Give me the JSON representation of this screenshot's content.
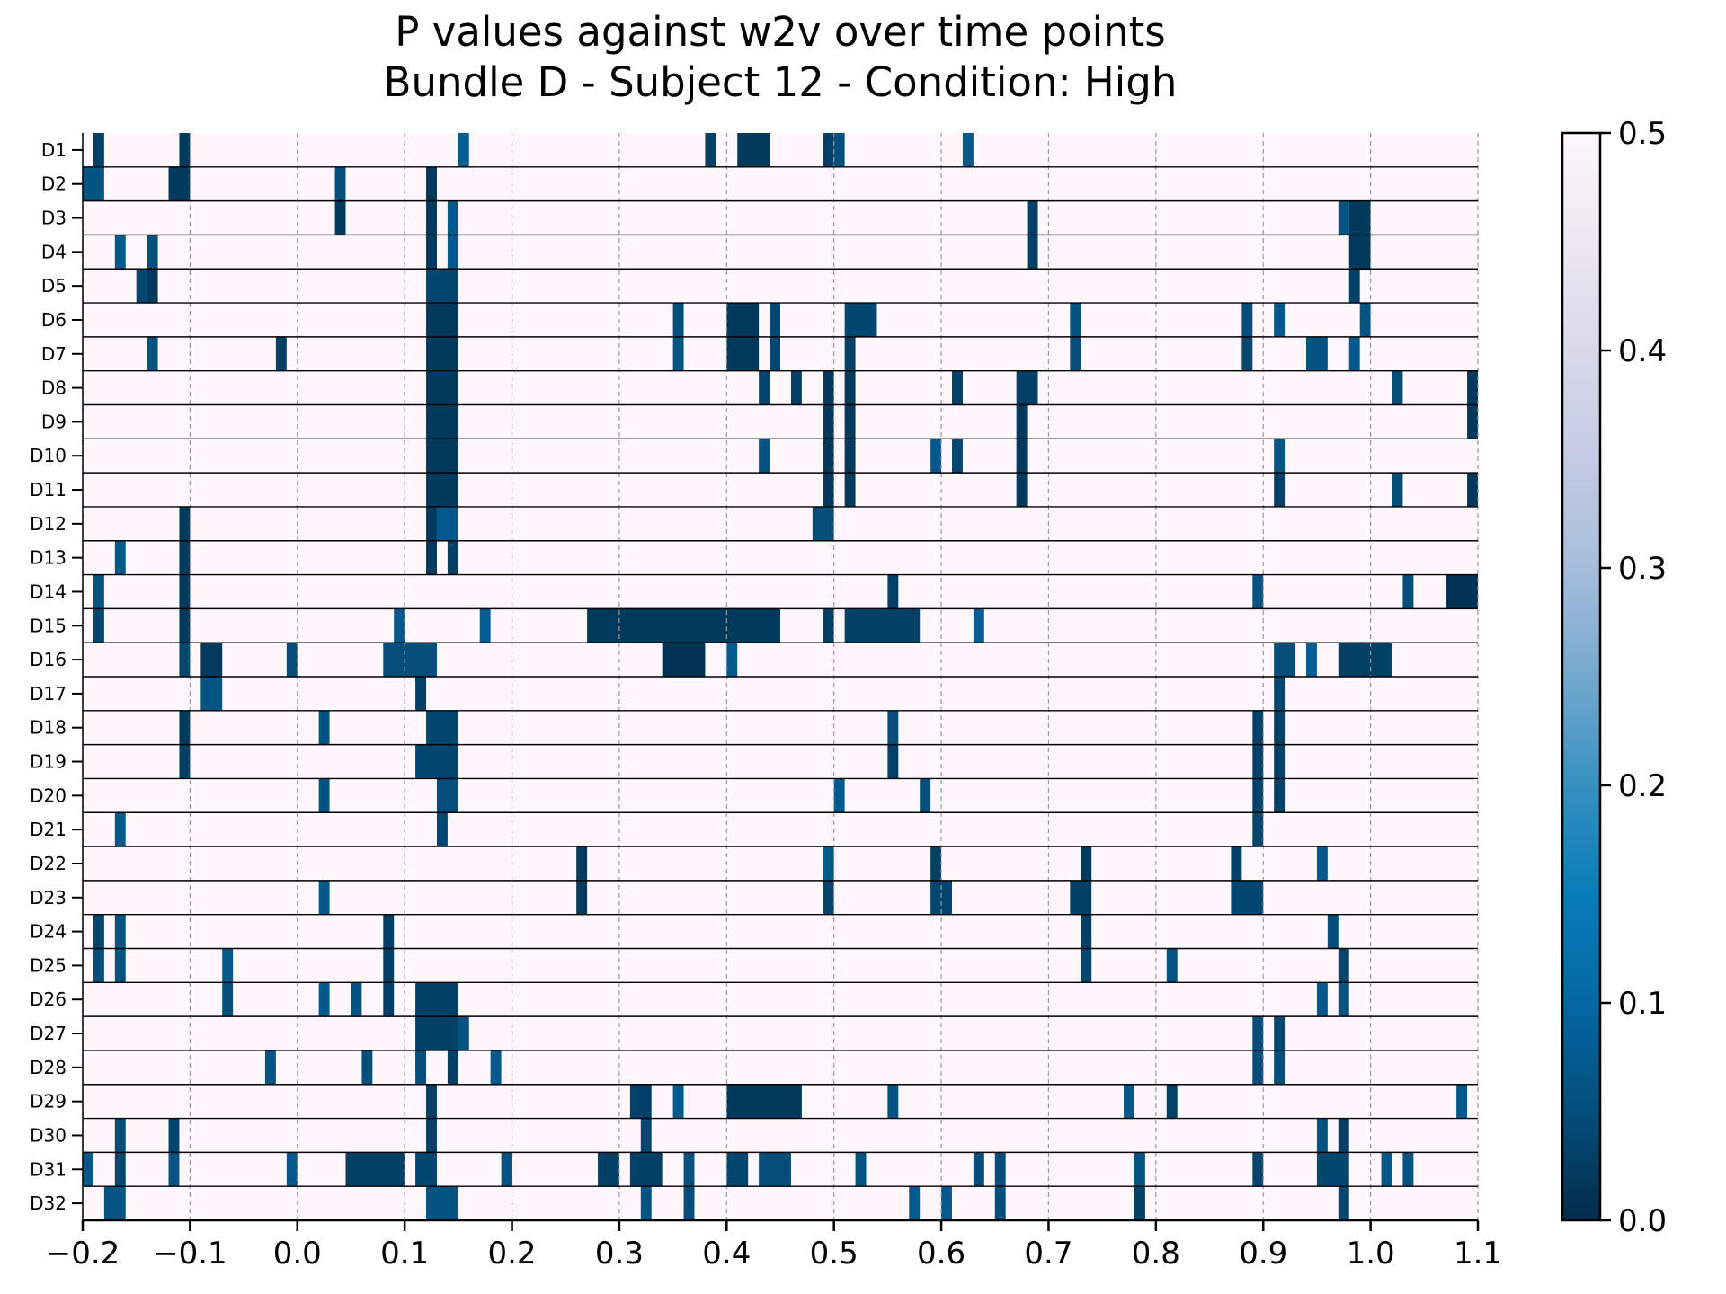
{
  "title_line1": "P values against w2v over time points",
  "title_line2": "Bundle D - Subject 12 - Condition: High",
  "chart_data": {
    "type": "heatmap",
    "title": "P values against w2v over time points\nBundle D - Subject 12 - Condition: High",
    "xlabel": "",
    "ylabel": "",
    "xlim": [
      -0.2,
      1.1
    ],
    "x_ticks": [
      -0.2,
      -0.1,
      0.0,
      0.1,
      0.2,
      0.3,
      0.4,
      0.5,
      0.6,
      0.7,
      0.8,
      0.9,
      1.0,
      1.1
    ],
    "x_tick_labels": [
      "−0.2",
      "−0.1",
      "0.0",
      "0.1",
      "0.2",
      "0.3",
      "0.4",
      "0.5",
      "0.6",
      "0.7",
      "0.8",
      "0.9",
      "1.0",
      "1.1"
    ],
    "rows": [
      "D1",
      "D2",
      "D3",
      "D4",
      "D5",
      "D6",
      "D7",
      "D8",
      "D9",
      "D10",
      "D11",
      "D12",
      "D13",
      "D14",
      "D15",
      "D16",
      "D17",
      "D18",
      "D19",
      "D20",
      "D21",
      "D22",
      "D23",
      "D24",
      "D25",
      "D26",
      "D27",
      "D28",
      "D29",
      "D30",
      "D31",
      "D32"
    ],
    "colorbar": {
      "colormap": "PuBu_r",
      "min": 0.0,
      "max": 0.5,
      "ticks": [
        0.0,
        0.1,
        0.2,
        0.3,
        0.4,
        0.5
      ],
      "tick_labels": [
        "0.0",
        "0.1",
        "0.2",
        "0.3",
        "0.4",
        "0.5"
      ]
    },
    "background_value": 0.5,
    "grid": "vertical dashed at x ticks",
    "significant_segments_note": "per row: [start_time, end_time, p_value]",
    "segments": {
      "D1": [
        [
          -0.19,
          -0.18,
          0.03
        ],
        [
          -0.11,
          -0.1,
          0.02
        ],
        [
          0.15,
          0.16,
          0.08
        ],
        [
          0.38,
          0.39,
          0.03
        ],
        [
          0.41,
          0.44,
          0.02
        ],
        [
          0.49,
          0.5,
          0.03
        ],
        [
          0.5,
          0.51,
          0.05
        ],
        [
          0.62,
          0.63,
          0.07
        ]
      ],
      "D2": [
        [
          -0.2,
          -0.18,
          0.06
        ],
        [
          -0.12,
          -0.1,
          0.02
        ],
        [
          0.035,
          0.045,
          0.05
        ],
        [
          0.12,
          0.13,
          0.02
        ]
      ],
      "D3": [
        [
          0.035,
          0.045,
          0.02
        ],
        [
          0.12,
          0.13,
          0.02
        ],
        [
          0.14,
          0.15,
          0.07
        ],
        [
          0.68,
          0.69,
          0.03
        ],
        [
          0.97,
          0.98,
          0.06
        ],
        [
          0.98,
          1.0,
          0.02
        ]
      ],
      "D4": [
        [
          -0.17,
          -0.16,
          0.07
        ],
        [
          -0.14,
          -0.13,
          0.05
        ],
        [
          0.12,
          0.13,
          0.02
        ],
        [
          0.14,
          0.15,
          0.07
        ],
        [
          0.68,
          0.69,
          0.03
        ],
        [
          0.98,
          1.0,
          0.02
        ]
      ],
      "D5": [
        [
          -0.15,
          -0.14,
          0.04
        ],
        [
          -0.14,
          -0.13,
          0.02
        ],
        [
          0.12,
          0.15,
          0.04
        ],
        [
          0.98,
          0.99,
          0.03
        ]
      ],
      "D6": [
        [
          0.12,
          0.15,
          0.02
        ],
        [
          0.35,
          0.36,
          0.05
        ],
        [
          0.4,
          0.43,
          0.02
        ],
        [
          0.44,
          0.45,
          0.04
        ],
        [
          0.51,
          0.54,
          0.04
        ],
        [
          0.72,
          0.73,
          0.06
        ],
        [
          0.88,
          0.89,
          0.05
        ],
        [
          0.91,
          0.92,
          0.07
        ],
        [
          0.99,
          1.0,
          0.06
        ]
      ],
      "D7": [
        [
          -0.14,
          -0.13,
          0.06
        ],
        [
          -0.02,
          -0.01,
          0.03
        ],
        [
          0.12,
          0.15,
          0.02
        ],
        [
          0.35,
          0.36,
          0.06
        ],
        [
          0.4,
          0.43,
          0.02
        ],
        [
          0.44,
          0.45,
          0.04
        ],
        [
          0.51,
          0.52,
          0.03
        ],
        [
          0.72,
          0.73,
          0.05
        ],
        [
          0.88,
          0.89,
          0.04
        ],
        [
          0.94,
          0.96,
          0.06
        ],
        [
          0.98,
          0.99,
          0.07
        ]
      ],
      "D8": [
        [
          0.12,
          0.15,
          0.02
        ],
        [
          0.43,
          0.44,
          0.04
        ],
        [
          0.46,
          0.47,
          0.03
        ],
        [
          0.49,
          0.5,
          0.02
        ],
        [
          0.51,
          0.52,
          0.02
        ],
        [
          0.61,
          0.62,
          0.03
        ],
        [
          0.67,
          0.69,
          0.03
        ],
        [
          1.02,
          1.03,
          0.05
        ],
        [
          1.09,
          1.1,
          0.02
        ]
      ],
      "D9": [
        [
          0.12,
          0.15,
          0.02
        ],
        [
          0.49,
          0.5,
          0.02
        ],
        [
          0.51,
          0.52,
          0.02
        ],
        [
          0.67,
          0.68,
          0.02
        ],
        [
          1.09,
          1.1,
          0.02
        ]
      ],
      "D10": [
        [
          0.12,
          0.15,
          0.02
        ],
        [
          0.43,
          0.44,
          0.06
        ],
        [
          0.49,
          0.5,
          0.02
        ],
        [
          0.51,
          0.52,
          0.02
        ],
        [
          0.59,
          0.6,
          0.07
        ],
        [
          0.61,
          0.62,
          0.04
        ],
        [
          0.67,
          0.68,
          0.02
        ],
        [
          0.91,
          0.92,
          0.06
        ]
      ],
      "D11": [
        [
          0.12,
          0.15,
          0.02
        ],
        [
          0.49,
          0.5,
          0.02
        ],
        [
          0.51,
          0.52,
          0.02
        ],
        [
          0.67,
          0.68,
          0.02
        ],
        [
          0.91,
          0.92,
          0.03
        ],
        [
          1.02,
          1.03,
          0.05
        ],
        [
          1.09,
          1.1,
          0.02
        ]
      ],
      "D12": [
        [
          -0.11,
          -0.1,
          0.02
        ],
        [
          0.12,
          0.13,
          0.02
        ],
        [
          0.13,
          0.15,
          0.07
        ],
        [
          0.48,
          0.5,
          0.05
        ]
      ],
      "D13": [
        [
          -0.17,
          -0.16,
          0.07
        ],
        [
          -0.11,
          -0.1,
          0.02
        ],
        [
          0.12,
          0.13,
          0.02
        ],
        [
          0.14,
          0.15,
          0.03
        ]
      ],
      "D14": [
        [
          -0.19,
          -0.18,
          0.06
        ],
        [
          -0.11,
          -0.1,
          0.02
        ],
        [
          0.55,
          0.56,
          0.03
        ],
        [
          0.89,
          0.9,
          0.06
        ],
        [
          1.03,
          1.04,
          0.05
        ],
        [
          1.07,
          1.1,
          0.01
        ]
      ],
      "D15": [
        [
          -0.19,
          -0.18,
          0.04
        ],
        [
          -0.11,
          -0.1,
          0.02
        ],
        [
          0.09,
          0.1,
          0.07
        ],
        [
          0.17,
          0.18,
          0.08
        ],
        [
          0.27,
          0.45,
          0.02
        ],
        [
          0.49,
          0.5,
          0.03
        ],
        [
          0.51,
          0.58,
          0.03
        ],
        [
          0.63,
          0.64,
          0.08
        ]
      ],
      "D16": [
        [
          -0.11,
          -0.1,
          0.04
        ],
        [
          -0.09,
          -0.07,
          0.02
        ],
        [
          -0.01,
          0.0,
          0.05
        ],
        [
          0.08,
          0.13,
          0.05
        ],
        [
          0.34,
          0.38,
          0.01
        ],
        [
          0.4,
          0.41,
          0.07
        ],
        [
          0.91,
          0.93,
          0.05
        ],
        [
          0.94,
          0.95,
          0.08
        ],
        [
          0.97,
          1.02,
          0.03
        ]
      ],
      "D17": [
        [
          -0.09,
          -0.07,
          0.06
        ],
        [
          0.11,
          0.12,
          0.03
        ],
        [
          0.91,
          0.92,
          0.04
        ]
      ],
      "D18": [
        [
          -0.11,
          -0.1,
          0.02
        ],
        [
          0.02,
          0.03,
          0.06
        ],
        [
          0.12,
          0.15,
          0.04
        ],
        [
          0.55,
          0.56,
          0.05
        ],
        [
          0.89,
          0.9,
          0.03
        ],
        [
          0.91,
          0.92,
          0.03
        ]
      ],
      "D19": [
        [
          -0.11,
          -0.1,
          0.03
        ],
        [
          0.11,
          0.15,
          0.04
        ],
        [
          0.55,
          0.56,
          0.03
        ],
        [
          0.89,
          0.9,
          0.03
        ],
        [
          0.91,
          0.92,
          0.03
        ]
      ],
      "D20": [
        [
          0.02,
          0.03,
          0.06
        ],
        [
          0.13,
          0.15,
          0.05
        ],
        [
          0.5,
          0.51,
          0.07
        ],
        [
          0.58,
          0.59,
          0.05
        ],
        [
          0.89,
          0.9,
          0.03
        ],
        [
          0.91,
          0.92,
          0.03
        ]
      ],
      "D21": [
        [
          -0.17,
          -0.16,
          0.07
        ],
        [
          0.13,
          0.14,
          0.04
        ],
        [
          0.89,
          0.9,
          0.04
        ]
      ],
      "D22": [
        [
          0.26,
          0.27,
          0.02
        ],
        [
          0.49,
          0.5,
          0.07
        ],
        [
          0.59,
          0.6,
          0.03
        ],
        [
          0.73,
          0.74,
          0.02
        ],
        [
          0.87,
          0.88,
          0.03
        ],
        [
          0.95,
          0.96,
          0.07
        ]
      ],
      "D23": [
        [
          0.02,
          0.03,
          0.07
        ],
        [
          0.26,
          0.27,
          0.02
        ],
        [
          0.49,
          0.5,
          0.04
        ],
        [
          0.59,
          0.61,
          0.04
        ],
        [
          0.72,
          0.74,
          0.03
        ],
        [
          0.87,
          0.9,
          0.04
        ]
      ],
      "D24": [
        [
          -0.19,
          -0.18,
          0.04
        ],
        [
          -0.17,
          -0.16,
          0.06
        ],
        [
          0.08,
          0.09,
          0.03
        ],
        [
          0.73,
          0.74,
          0.03
        ],
        [
          0.96,
          0.97,
          0.05
        ]
      ],
      "D25": [
        [
          -0.19,
          -0.18,
          0.05
        ],
        [
          -0.17,
          -0.16,
          0.06
        ],
        [
          -0.07,
          -0.06,
          0.07
        ],
        [
          0.08,
          0.09,
          0.03
        ],
        [
          0.73,
          0.74,
          0.04
        ],
        [
          0.81,
          0.82,
          0.06
        ],
        [
          0.97,
          0.98,
          0.04
        ]
      ],
      "D26": [
        [
          -0.07,
          -0.06,
          0.05
        ],
        [
          0.02,
          0.03,
          0.07
        ],
        [
          0.05,
          0.06,
          0.06
        ],
        [
          0.08,
          0.09,
          0.03
        ],
        [
          0.11,
          0.15,
          0.03
        ],
        [
          0.95,
          0.96,
          0.07
        ],
        [
          0.97,
          0.98,
          0.06
        ]
      ],
      "D27": [
        [
          0.11,
          0.15,
          0.03
        ],
        [
          0.15,
          0.16,
          0.06
        ],
        [
          0.89,
          0.9,
          0.05
        ],
        [
          0.91,
          0.92,
          0.04
        ]
      ],
      "D28": [
        [
          -0.03,
          -0.02,
          0.06
        ],
        [
          0.06,
          0.07,
          0.05
        ],
        [
          0.11,
          0.12,
          0.05
        ],
        [
          0.14,
          0.15,
          0.03
        ],
        [
          0.18,
          0.19,
          0.07
        ],
        [
          0.89,
          0.9,
          0.05
        ],
        [
          0.91,
          0.92,
          0.05
        ]
      ],
      "D29": [
        [
          0.12,
          0.13,
          0.03
        ],
        [
          0.31,
          0.33,
          0.03
        ],
        [
          0.35,
          0.36,
          0.07
        ],
        [
          0.4,
          0.47,
          0.02
        ],
        [
          0.55,
          0.56,
          0.06
        ],
        [
          0.77,
          0.78,
          0.07
        ],
        [
          0.81,
          0.82,
          0.03
        ],
        [
          1.08,
          1.09,
          0.07
        ]
      ],
      "D30": [
        [
          -0.17,
          -0.16,
          0.05
        ],
        [
          -0.12,
          -0.11,
          0.04
        ],
        [
          0.12,
          0.13,
          0.03
        ],
        [
          0.32,
          0.33,
          0.04
        ],
        [
          0.95,
          0.96,
          0.06
        ],
        [
          0.97,
          0.98,
          0.03
        ]
      ],
      "D31": [
        [
          -0.2,
          -0.19,
          0.07
        ],
        [
          -0.17,
          -0.16,
          0.04
        ],
        [
          -0.12,
          -0.11,
          0.06
        ],
        [
          -0.01,
          0.0,
          0.07
        ],
        [
          0.045,
          0.1,
          0.03
        ],
        [
          0.11,
          0.13,
          0.04
        ],
        [
          0.19,
          0.2,
          0.06
        ],
        [
          0.28,
          0.3,
          0.03
        ],
        [
          0.31,
          0.34,
          0.03
        ],
        [
          0.36,
          0.37,
          0.06
        ],
        [
          0.4,
          0.42,
          0.04
        ],
        [
          0.43,
          0.46,
          0.05
        ],
        [
          0.52,
          0.53,
          0.06
        ],
        [
          0.63,
          0.64,
          0.05
        ],
        [
          0.65,
          0.66,
          0.05
        ],
        [
          0.78,
          0.79,
          0.06
        ],
        [
          0.89,
          0.9,
          0.04
        ],
        [
          0.95,
          0.98,
          0.04
        ],
        [
          1.01,
          1.02,
          0.07
        ],
        [
          1.03,
          1.04,
          0.06
        ]
      ],
      "D32": [
        [
          -0.18,
          -0.16,
          0.06
        ],
        [
          0.12,
          0.15,
          0.06
        ],
        [
          0.32,
          0.33,
          0.06
        ],
        [
          0.36,
          0.37,
          0.05
        ],
        [
          0.57,
          0.58,
          0.07
        ],
        [
          0.6,
          0.61,
          0.07
        ],
        [
          0.65,
          0.66,
          0.05
        ],
        [
          0.78,
          0.79,
          0.03
        ],
        [
          0.97,
          0.98,
          0.04
        ]
      ]
    }
  }
}
